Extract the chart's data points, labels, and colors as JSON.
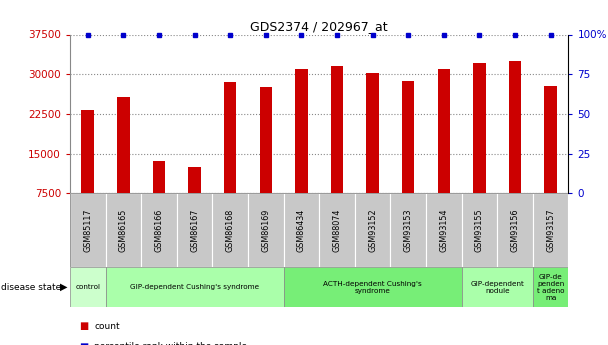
{
  "title": "GDS2374 / 202967_at",
  "samples": [
    "GSM85117",
    "GSM86165",
    "GSM86166",
    "GSM86167",
    "GSM86168",
    "GSM86169",
    "GSM86434",
    "GSM88074",
    "GSM93152",
    "GSM93153",
    "GSM93154",
    "GSM93155",
    "GSM93156",
    "GSM93157"
  ],
  "counts": [
    23200,
    25700,
    13600,
    12400,
    28600,
    27600,
    31000,
    31500,
    30300,
    28800,
    30900,
    32100,
    32500,
    27800
  ],
  "percentile": [
    100,
    100,
    100,
    100,
    100,
    100,
    100,
    100,
    100,
    100,
    100,
    100,
    100,
    100
  ],
  "bar_color": "#cc0000",
  "dot_color": "#0000cc",
  "ylim_left": [
    7500,
    37500
  ],
  "ylim_right": [
    0,
    100
  ],
  "yticks_left": [
    7500,
    15000,
    22500,
    30000,
    37500
  ],
  "yticks_right": [
    0,
    25,
    50,
    75,
    100
  ],
  "disease_groups": [
    {
      "label": "control",
      "start": 0,
      "end": 1,
      "color": "#ccffcc"
    },
    {
      "label": "GIP-dependent Cushing's syndrome",
      "start": 1,
      "end": 6,
      "color": "#aaffaa"
    },
    {
      "label": "ACTH-dependent Cushing's\nsyndrome",
      "start": 6,
      "end": 11,
      "color": "#77ee77"
    },
    {
      "label": "GIP-dependent\nnodule",
      "start": 11,
      "end": 13,
      "color": "#aaffaa"
    },
    {
      "label": "GIP-de\npenden\nt adeno\nma",
      "start": 13,
      "end": 14,
      "color": "#77ee77"
    }
  ],
  "bar_color_str": "#cc0000",
  "dot_color_str": "#0000cc",
  "grid_color": "#888888",
  "bg_gray": "#c8c8c8"
}
